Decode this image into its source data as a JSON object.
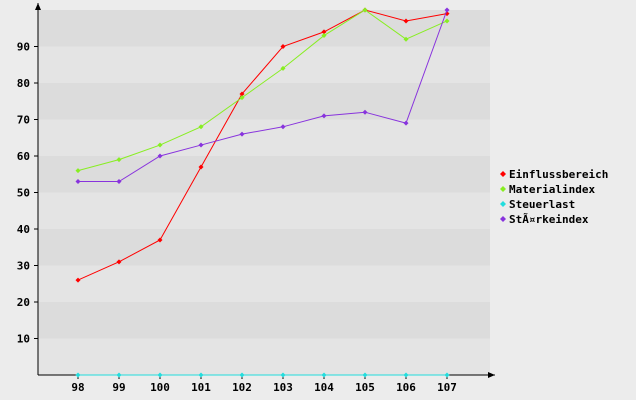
{
  "chart_data": {
    "type": "line",
    "title": "",
    "xlabel": "",
    "ylabel": "",
    "categories": [
      "98",
      "99",
      "100",
      "101",
      "102",
      "103",
      "104",
      "105",
      "106",
      "107"
    ],
    "ylim": [
      0,
      100
    ],
    "yticks": [
      "10",
      "20",
      "30",
      "40",
      "50",
      "60",
      "70",
      "80",
      "90"
    ],
    "grid": "horizontal bands",
    "legend_position": "right",
    "series": [
      {
        "name": "Einflussbereich",
        "color": "#ff0000",
        "values": [
          26,
          31,
          37,
          57,
          77,
          90,
          94,
          100,
          97,
          99
        ]
      },
      {
        "name": "Materialindex",
        "color": "#88ee22",
        "values": [
          56,
          59,
          63,
          68,
          76,
          84,
          93,
          100,
          92,
          97
        ]
      },
      {
        "name": "Steuerlast",
        "color": "#22dddd",
        "values": [
          0,
          0,
          0,
          0,
          0,
          0,
          0,
          0,
          0,
          0
        ]
      },
      {
        "name": "StÃ¤rkeindex",
        "color": "#8833dd",
        "values": [
          53,
          53,
          60,
          63,
          66,
          68,
          71,
          72,
          69,
          100
        ]
      }
    ]
  }
}
